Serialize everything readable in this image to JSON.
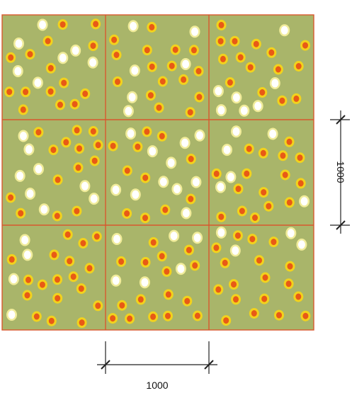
{
  "colors": {
    "background": "#ffffff",
    "tile_fill": "#a9b56a",
    "tile_border": "#d8582e",
    "dot_orange_center": "#e85a16",
    "dot_orange_ring": "#f2d21d",
    "dot_white_center": "#ffffff",
    "dot_white_ring": "#f1ec9a",
    "dimension_line": "#222222"
  },
  "grid": {
    "rows": 3,
    "columns": 3
  },
  "dimensions": {
    "horizontal_label": "1000",
    "vertical_label": "1000"
  }
}
